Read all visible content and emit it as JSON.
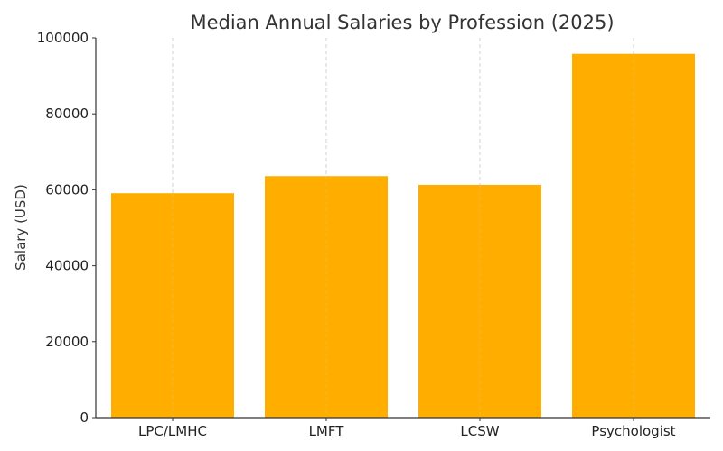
{
  "chart_data": {
    "type": "bar",
    "title": "Median Annual Salaries by Profession (2025)",
    "xlabel": "",
    "ylabel": "Salary (USD)",
    "categories": [
      "LPC/LMHC",
      "LMFT",
      "LCSW",
      "Psychologist"
    ],
    "values": [
      59100,
      63600,
      61300,
      95800
    ],
    "ylim": [
      0,
      100000
    ],
    "yticks": [
      0,
      20000,
      40000,
      60000,
      80000,
      100000
    ],
    "grid": "x-dashed",
    "bar_color": "#FFAE00"
  }
}
